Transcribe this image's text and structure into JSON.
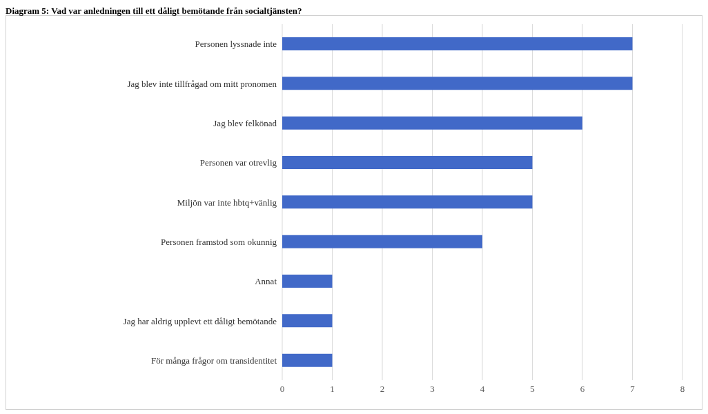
{
  "chart_data": {
    "type": "bar",
    "orientation": "horizontal",
    "title": "Diagram 5: Vad var anledningen till ett dåligt bemötande från socialtjänsten?",
    "categories": [
      "Personen lyssnade inte",
      "Jag blev inte tillfrågad om mitt pronomen",
      "Jag blev felkönad",
      "Personen var otrevlig",
      "Miljön var inte hbtq+vänlig",
      "Personen framstod som okunnig",
      "Annat",
      "Jag har aldrig upplevt ett dåligt bemötande",
      "För många frågor om transidentitet"
    ],
    "values": [
      7,
      7,
      6,
      5,
      5,
      4,
      1,
      1,
      1
    ],
    "color": "#4169c8",
    "xlim": [
      0,
      8
    ],
    "xticks": [
      0,
      1,
      2,
      3,
      4,
      5,
      6,
      7,
      8
    ],
    "grid": "x"
  }
}
